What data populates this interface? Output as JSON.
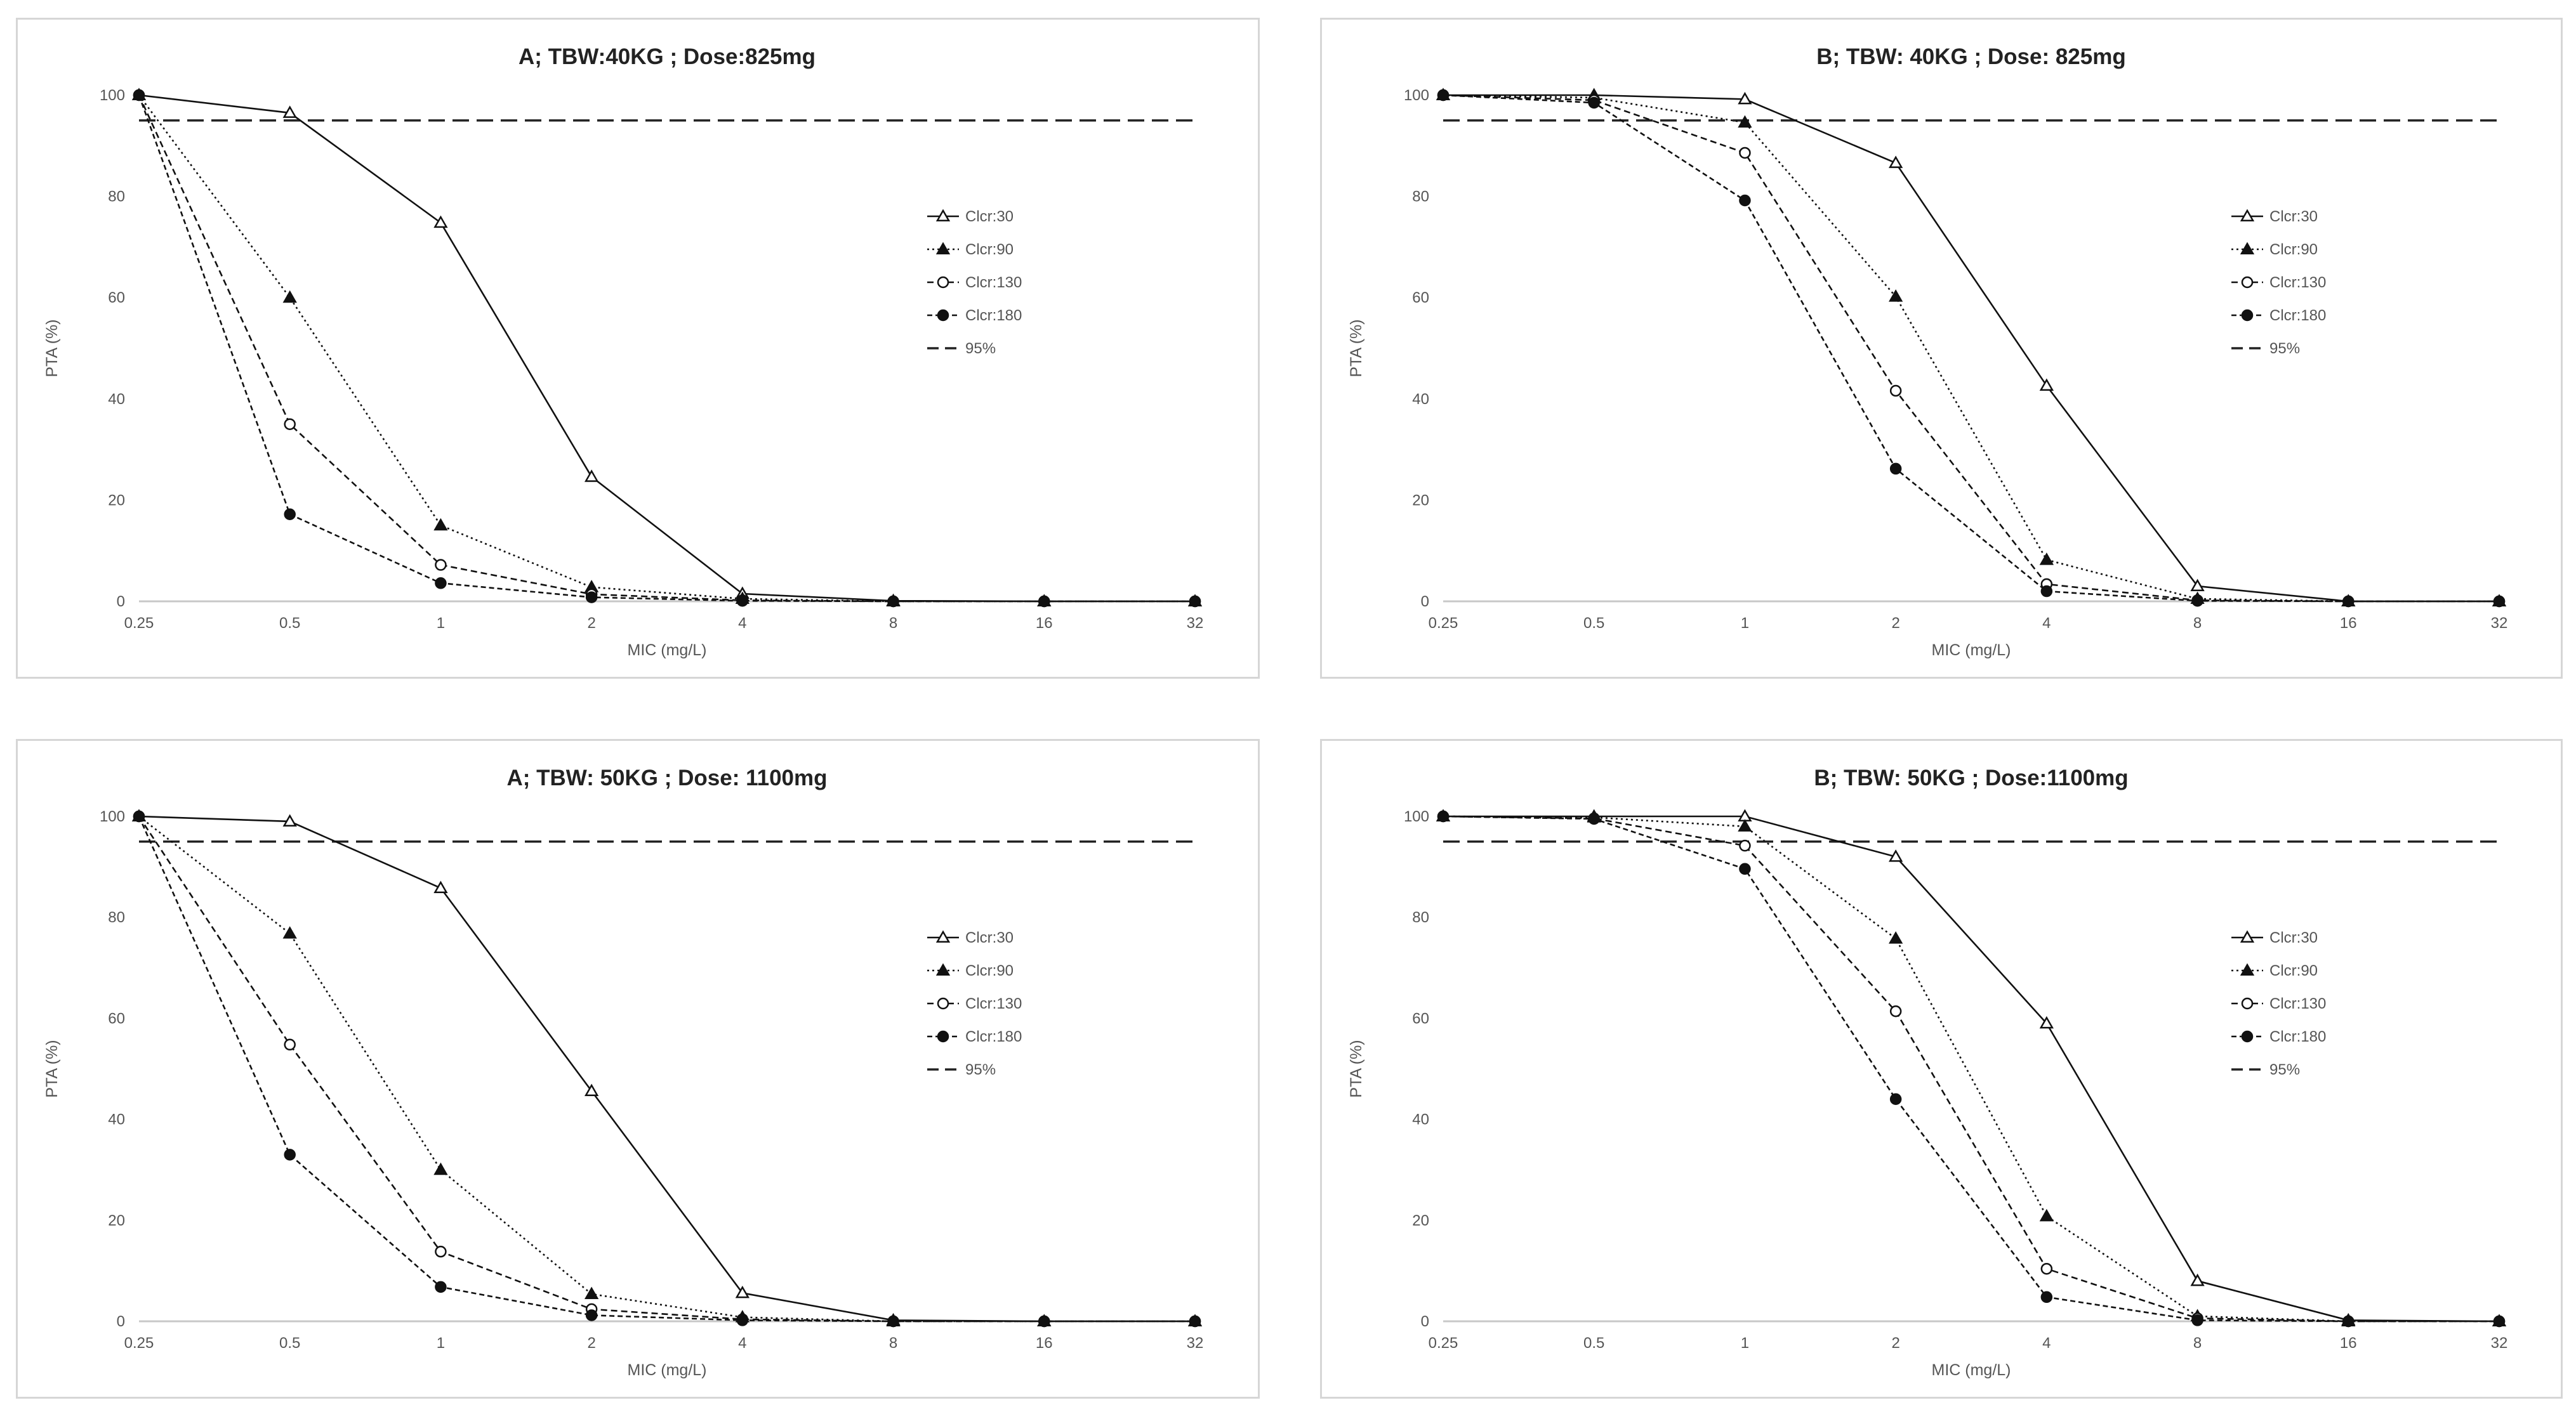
{
  "chart_data": [
    {
      "type": "line",
      "title": "A;  TBW:40KG ; Dose:825mg",
      "xlabel": "MIC (mg/L)",
      "ylabel": "PTA (%)",
      "x": [
        "0.25",
        "0.5",
        "1",
        "2",
        "4",
        "8",
        "16",
        "32"
      ],
      "ylim": [
        0,
        100
      ],
      "yticks": [
        "0",
        "20",
        "40",
        "60",
        "80",
        "100"
      ],
      "legend_position": "right",
      "series": [
        {
          "name": "Clcr:30",
          "values": [
            100,
            96.5,
            74.8,
            24.6,
            1.5,
            0.1,
            0,
            0
          ]
        },
        {
          "name": "Clcr:90",
          "values": [
            100,
            60,
            15,
            2.8,
            0.5,
            0,
            0,
            0
          ]
        },
        {
          "name": "Clcr:130",
          "values": [
            100,
            35,
            7.2,
            1.4,
            0.2,
            0,
            0,
            0
          ]
        },
        {
          "name": "Clcr:180",
          "values": [
            100,
            17.2,
            3.6,
            0.8,
            0.1,
            0,
            0,
            0
          ]
        }
      ],
      "reference": {
        "name": "95%",
        "value": 95
      }
    },
    {
      "type": "line",
      "title": "B; TBW: 40KG ; Dose: 825mg",
      "xlabel": "MIC (mg/L)",
      "ylabel": "PTA (%)",
      "x": [
        "0.25",
        "0.5",
        "1",
        "2",
        "4",
        "8",
        "16",
        "32"
      ],
      "ylim": [
        0,
        100
      ],
      "yticks": [
        "0",
        "20",
        "40",
        "60",
        "80",
        "100"
      ],
      "legend_position": "right",
      "series": [
        {
          "name": "Clcr:30",
          "values": [
            100,
            100,
            99.2,
            86.6,
            42.6,
            3.0,
            0,
            0
          ]
        },
        {
          "name": "Clcr:90",
          "values": [
            100,
            99.5,
            94.6,
            60.2,
            8.2,
            0.5,
            0,
            0
          ]
        },
        {
          "name": "Clcr:130",
          "values": [
            100,
            99,
            88.6,
            41.6,
            3.4,
            0.2,
            0,
            0
          ]
        },
        {
          "name": "Clcr:180",
          "values": [
            100,
            98.5,
            79.2,
            26.2,
            2.0,
            0.1,
            0,
            0
          ]
        }
      ],
      "reference": {
        "name": "95%",
        "value": 95
      }
    },
    {
      "type": "line",
      "title": "A; TBW: 50KG ; Dose: 1100mg",
      "xlabel": "MIC (mg/L)",
      "ylabel": "PTA (%)",
      "x": [
        "0.25",
        "0.5",
        "1",
        "2",
        "4",
        "8",
        "16",
        "32"
      ],
      "ylim": [
        0,
        100
      ],
      "yticks": [
        "0",
        "20",
        "40",
        "60",
        "80",
        "100"
      ],
      "legend_position": "right",
      "series": [
        {
          "name": "Clcr:30",
          "values": [
            100,
            99,
            85.8,
            45.6,
            5.6,
            0.2,
            0,
            0
          ]
        },
        {
          "name": "Clcr:90",
          "values": [
            100,
            76.8,
            30,
            5.4,
            0.8,
            0,
            0,
            0
          ]
        },
        {
          "name": "Clcr:130",
          "values": [
            100,
            54.8,
            13.8,
            2.4,
            0.4,
            0,
            0,
            0
          ]
        },
        {
          "name": "Clcr:180",
          "values": [
            100,
            33,
            6.8,
            1.2,
            0.2,
            0,
            0,
            0
          ]
        }
      ],
      "reference": {
        "name": "95%",
        "value": 95
      }
    },
    {
      "type": "line",
      "title": "B; TBW: 50KG ;  Dose:1100mg",
      "xlabel": "MIC (mg/L)",
      "ylabel": "PTA (%)",
      "x": [
        "0.25",
        "0.5",
        "1",
        "2",
        "4",
        "8",
        "16",
        "32"
      ],
      "ylim": [
        0,
        100
      ],
      "yticks": [
        "0",
        "20",
        "40",
        "60",
        "80",
        "100"
      ],
      "legend_position": "right",
      "series": [
        {
          "name": "Clcr:30",
          "values": [
            100,
            100,
            100,
            92,
            59,
            8,
            0.2,
            0
          ]
        },
        {
          "name": "Clcr:90",
          "values": [
            100,
            99.8,
            98,
            75.8,
            20.8,
            1.0,
            0,
            0
          ]
        },
        {
          "name": "Clcr:130",
          "values": [
            100,
            99.6,
            94.2,
            61.4,
            10.4,
            0.6,
            0,
            0
          ]
        },
        {
          "name": "Clcr:180",
          "values": [
            100,
            99.5,
            89.6,
            44,
            4.8,
            0.2,
            0,
            0
          ]
        }
      ],
      "reference": {
        "name": "95%",
        "value": 95
      }
    }
  ]
}
